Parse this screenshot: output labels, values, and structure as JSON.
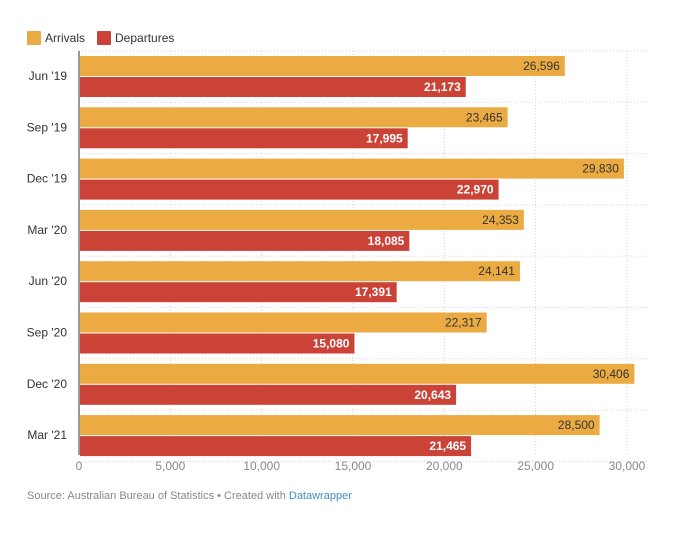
{
  "legend": {
    "arrivals_label": "Arrivals",
    "departures_label": "Departures"
  },
  "footer": {
    "source_text": "Source: Australian Bureau of Statistics • Created with ",
    "link_text": "Datawrapper"
  },
  "colors": {
    "arrivals": "#ebab42",
    "departures": "#cb4336",
    "grid": "#d6d6d6",
    "label_dark": "#333333",
    "label_light": "#ffffff"
  },
  "chart_data": {
    "type": "bar",
    "orientation": "horizontal",
    "title": "",
    "xlabel": "",
    "ylabel": "",
    "xlim": [
      0,
      30000
    ],
    "x_ticks": [
      "0",
      "5,000",
      "10,000",
      "15,000",
      "20,000",
      "25,000",
      "30,000"
    ],
    "x_tick_values": [
      0,
      5000,
      10000,
      15000,
      20000,
      25000,
      30000
    ],
    "categories": [
      "Jun '19",
      "Sep '19",
      "Dec '19",
      "Mar '20",
      "Jun '20",
      "Sep '20",
      "Dec '20",
      "Mar '21"
    ],
    "series": [
      {
        "name": "Arrivals",
        "values": [
          26596,
          23465,
          29830,
          24353,
          24141,
          22317,
          30406,
          28500
        ],
        "labels": [
          "26,596",
          "23,465",
          "29,830",
          "24,353",
          "24,141",
          "22,317",
          "30,406",
          "28,500"
        ]
      },
      {
        "name": "Departures",
        "values": [
          21173,
          17995,
          22970,
          18085,
          17391,
          15080,
          20643,
          21465
        ],
        "labels": [
          "21,173",
          "17,995",
          "22,970",
          "18,085",
          "17,391",
          "15,080",
          "20,643",
          "21,465"
        ]
      }
    ],
    "legend_position": "top-left",
    "grid": true
  }
}
